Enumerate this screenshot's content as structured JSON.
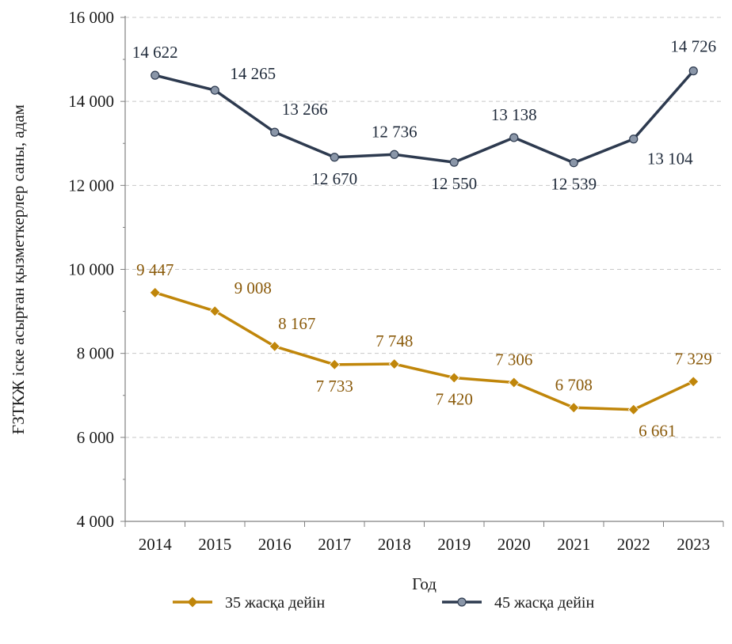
{
  "chart_data": {
    "type": "line",
    "categories": [
      "2014",
      "2015",
      "2016",
      "2017",
      "2018",
      "2019",
      "2020",
      "2021",
      "2022",
      "2023"
    ],
    "x": [
      2014,
      2015,
      2016,
      2017,
      2018,
      2019,
      2020,
      2021,
      2022,
      2023
    ],
    "xlabel": "Год",
    "ylabel": "ҒЗТКЖ іске асырған қызметкерлер саны, адам",
    "ylim": [
      4000,
      16000
    ],
    "yticks": [
      4000,
      6000,
      8000,
      10000,
      12000,
      14000,
      16000
    ],
    "ytick_labels": [
      "4 000",
      "6 000",
      "8 000",
      "10 000",
      "12 000",
      "14 000",
      "16 000"
    ],
    "grid": "horizontal dashed",
    "legend_position": "bottom",
    "series": [
      {
        "name": "35 жасқа дейін",
        "color": "#c0860a",
        "marker": "diamond",
        "values": [
          9447,
          9008,
          8167,
          7733,
          7748,
          7420,
          7306,
          6708,
          6661,
          7329
        ],
        "labels": [
          "9 447",
          "9 008",
          "8 167",
          "7 733",
          "7 748",
          "7 420",
          "7 306",
          "6 708",
          "6 661",
          "7 329"
        ]
      },
      {
        "name": "45 жасқа дейін",
        "color": "#2d3a4f",
        "marker": "circle",
        "values": [
          14622,
          14265,
          13266,
          12670,
          12736,
          12550,
          13138,
          12539,
          13104,
          14726
        ],
        "labels": [
          "14 622",
          "14 265",
          "13 266",
          "12 670",
          "12 736",
          "12 550",
          "13 138",
          "12 539",
          "13 104",
          "14 726"
        ]
      }
    ]
  }
}
